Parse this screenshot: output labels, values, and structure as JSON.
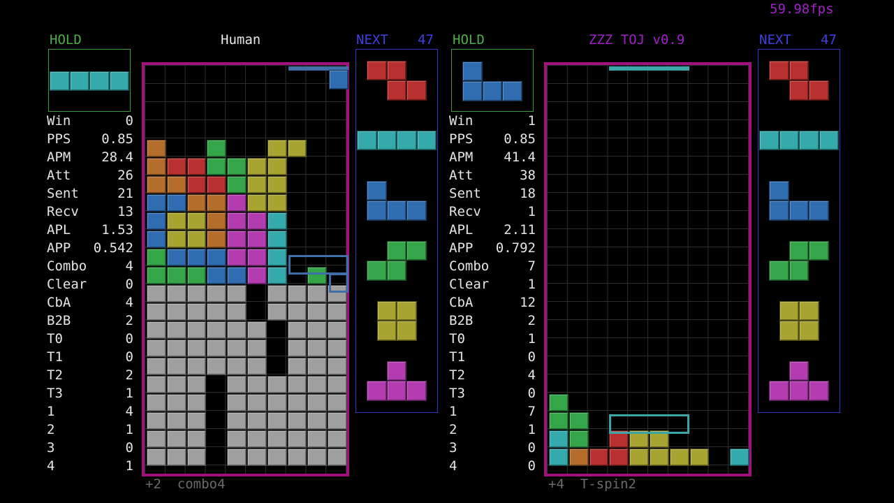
{
  "fps": "59.98fps",
  "colors": {
    "I": "#34aaad",
    "O": "#a8a431",
    "T": "#b23cb0",
    "S": "#35a54a",
    "Z": "#b8302f",
    "J": "#2f6db0",
    "L": "#b56d2c",
    "G": "#9f9f9f",
    "border": "#a1117e"
  },
  "left": {
    "hold_label": "HOLD",
    "player_name": "Human",
    "next_label": "NEXT",
    "next_count": "47",
    "hold_piece": "I",
    "next_pieces": [
      "Z",
      "I",
      "J",
      "S",
      "O",
      "T"
    ],
    "stats": [
      {
        "label": "Win",
        "value": "0"
      },
      {
        "label": "PPS",
        "value": "0.85"
      },
      {
        "label": "APM",
        "value": "28.4"
      },
      {
        "label": "Att",
        "value": "26"
      },
      {
        "label": "Sent",
        "value": "21"
      },
      {
        "label": "Recv",
        "value": "13"
      },
      {
        "label": "APL",
        "value": "1.53"
      },
      {
        "label": "APP",
        "value": "0.542"
      },
      {
        "label": "Combo",
        "value": "4"
      },
      {
        "label": "Clear",
        "value": "0"
      },
      {
        "label": "CbA",
        "value": "4"
      },
      {
        "label": "B2B",
        "value": "2"
      },
      {
        "label": "T0",
        "value": "0"
      },
      {
        "label": "T1",
        "value": "0"
      },
      {
        "label": "T2",
        "value": "2"
      },
      {
        "label": "T3",
        "value": "1"
      },
      {
        "label": "1",
        "value": "4"
      },
      {
        "label": "2",
        "value": "1"
      },
      {
        "label": "3",
        "value": "0"
      },
      {
        "label": "4",
        "value": "1"
      }
    ],
    "status": "+2  combo4",
    "board": [
      "..........",
      "..........",
      "..........",
      "..........",
      "L..S..OO..",
      "LZZSSOO...",
      "LLZZSOO...",
      "JJLLTOO...",
      "JOOLTTI...",
      "JOOLTTI...",
      "SJJJTTI...",
      "SSSJJTI.S.",
      "GGGGG.GGGG",
      "GGGGG.GGGG",
      "GGGGGG.GGG",
      "GGGGGG.GGG",
      "GGGGGG.GGG",
      "GGG.GGGGGG",
      "GGG.GGGGGG",
      "GGG.GGGGGG",
      "GGG.GGGGGG",
      "GGG.GGGGGG"
    ]
  },
  "right": {
    "hold_label": "HOLD",
    "player_name": "ZZZ TOJ v0.9",
    "next_label": "NEXT",
    "next_count": "47",
    "hold_piece": "J",
    "next_pieces": [
      "Z",
      "I",
      "J",
      "S",
      "O",
      "T"
    ],
    "stats": [
      {
        "label": "Win",
        "value": "1"
      },
      {
        "label": "PPS",
        "value": "0.85"
      },
      {
        "label": "APM",
        "value": "41.4"
      },
      {
        "label": "Att",
        "value": "38"
      },
      {
        "label": "Sent",
        "value": "18"
      },
      {
        "label": "Recv",
        "value": "1"
      },
      {
        "label": "APL",
        "value": "2.11"
      },
      {
        "label": "APP",
        "value": "0.792"
      },
      {
        "label": "Combo",
        "value": "7"
      },
      {
        "label": "Clear",
        "value": "1"
      },
      {
        "label": "CbA",
        "value": "12"
      },
      {
        "label": "B2B",
        "value": "2"
      },
      {
        "label": "T0",
        "value": "1"
      },
      {
        "label": "T1",
        "value": "0"
      },
      {
        "label": "T2",
        "value": "4"
      },
      {
        "label": "T3",
        "value": "0"
      },
      {
        "label": "1",
        "value": "7"
      },
      {
        "label": "2",
        "value": "1"
      },
      {
        "label": "3",
        "value": "0"
      },
      {
        "label": "4",
        "value": "0"
      }
    ],
    "status": "+4  T-spin2",
    "board": [
      "..........",
      "..........",
      "..........",
      "..........",
      "..........",
      "..........",
      "..........",
      "..........",
      "..........",
      "..........",
      "..........",
      "..........",
      "..........",
      "..........",
      "..........",
      "..........",
      "..........",
      "..........",
      "S.........",
      "SS........",
      "IS.ZOO....",
      "ILZZOOOO.I"
    ]
  }
}
